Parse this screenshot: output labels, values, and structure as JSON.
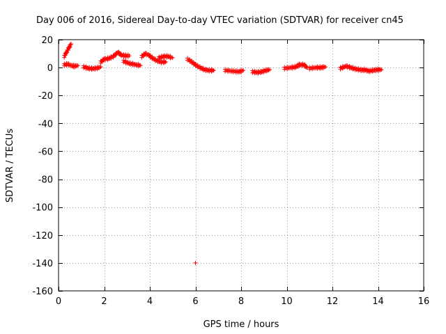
{
  "chart_data": {
    "type": "scatter",
    "title": "Day 006 of 2016, Sidereal Day-to-day VTEC variation (SDTVAR) for receiver cn45",
    "xlabel": "GPS time / hours",
    "ylabel": "SDTVAR / TECUs",
    "xlim": [
      0,
      16
    ],
    "ylim": [
      -160,
      20
    ],
    "xticks": [
      0,
      2,
      4,
      6,
      8,
      10,
      12,
      14,
      16
    ],
    "yticks": [
      -160,
      -140,
      -120,
      -100,
      -80,
      -60,
      -40,
      -20,
      0,
      20
    ],
    "grid": true,
    "marker": "+",
    "color": "#ff0000",
    "series": [
      {
        "name": "SDTVAR",
        "segments": [
          [
            [
              0.25,
              8
            ],
            [
              0.35,
              11
            ],
            [
              0.45,
              14
            ],
            [
              0.55,
              17
            ]
          ],
          [
            [
              0.25,
              2
            ],
            [
              0.4,
              2.5
            ],
            [
              0.55,
              1.5
            ],
            [
              0.7,
              1
            ],
            [
              0.85,
              1.5
            ]
          ],
          [
            [
              1.1,
              0.5
            ],
            [
              1.3,
              -0.5
            ],
            [
              1.5,
              -0.8
            ],
            [
              1.7,
              -0.3
            ],
            [
              1.85,
              0.5
            ]
          ],
          [
            [
              1.85,
              4
            ],
            [
              2.0,
              6
            ],
            [
              2.2,
              6.5
            ],
            [
              2.4,
              8
            ],
            [
              2.6,
              11
            ],
            [
              2.75,
              9
            ],
            [
              2.9,
              8.5
            ],
            [
              3.1,
              8.5
            ]
          ],
          [
            [
              2.85,
              4.5
            ],
            [
              3.1,
              3
            ],
            [
              3.4,
              2
            ],
            [
              3.6,
              1.5
            ]
          ],
          [
            [
              3.65,
              8
            ],
            [
              3.8,
              10
            ],
            [
              3.95,
              9
            ],
            [
              4.1,
              7
            ],
            [
              4.3,
              5
            ],
            [
              4.5,
              4
            ],
            [
              4.7,
              4
            ]
          ],
          [
            [
              4.4,
              7
            ],
            [
              4.6,
              8
            ],
            [
              4.8,
              8
            ],
            [
              5.0,
              7
            ]
          ],
          [
            [
              5.65,
              6
            ],
            [
              5.8,
              4.5
            ],
            [
              6.0,
              2
            ],
            [
              6.2,
              0
            ],
            [
              6.4,
              -1.5
            ],
            [
              6.6,
              -2
            ],
            [
              6.8,
              -2
            ]
          ],
          [
            [
              7.3,
              -2
            ],
            [
              7.6,
              -2.5
            ],
            [
              7.9,
              -3
            ],
            [
              8.1,
              -2
            ]
          ],
          [
            [
              8.5,
              -3
            ],
            [
              8.7,
              -3.5
            ],
            [
              8.9,
              -3
            ],
            [
              9.1,
              -2
            ],
            [
              9.25,
              -1.5
            ]
          ],
          [
            [
              9.9,
              -0.5
            ],
            [
              10.2,
              0
            ],
            [
              10.4,
              0.5
            ],
            [
              10.55,
              2
            ],
            [
              10.75,
              2
            ],
            [
              10.9,
              0
            ]
          ],
          [
            [
              11.0,
              -0.5
            ],
            [
              11.3,
              0
            ],
            [
              11.5,
              0
            ],
            [
              11.7,
              0.5
            ]
          ],
          [
            [
              12.35,
              -0.5
            ],
            [
              12.6,
              1
            ],
            [
              12.8,
              0
            ],
            [
              13.0,
              -1
            ],
            [
              13.2,
              -1.5
            ],
            [
              13.4,
              -2
            ]
          ],
          [
            [
              13.4,
              -1.5
            ],
            [
              13.6,
              -2.5
            ],
            [
              13.8,
              -2
            ],
            [
              14.0,
              -1.5
            ],
            [
              14.15,
              -1.5
            ]
          ],
          [
            [
              6.0,
              -140
            ]
          ]
        ]
      }
    ]
  }
}
